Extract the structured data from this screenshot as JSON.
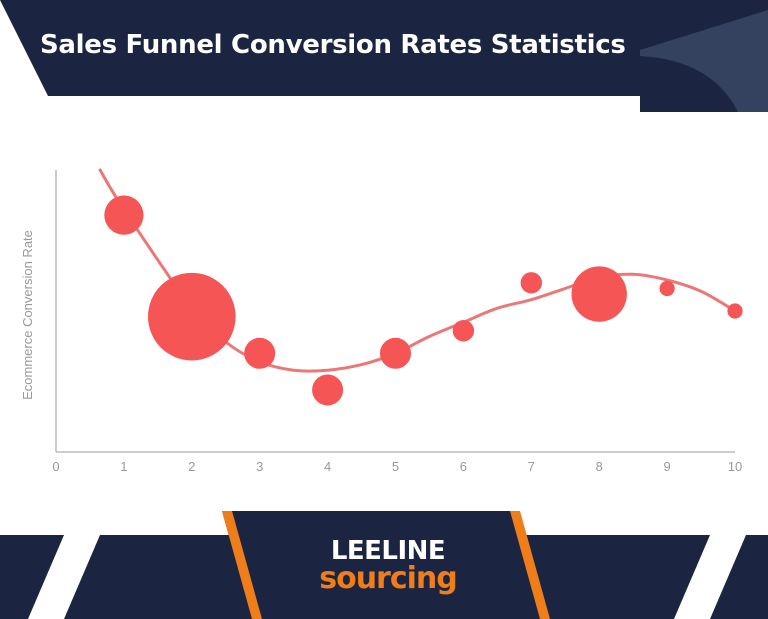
{
  "header": {
    "title": "Sales Funnel Conversion Rates Statistics"
  },
  "colors": {
    "navy": "#1b2541",
    "navy_light": "#34425f",
    "accent": "#f55555",
    "trendline": "#ec7777",
    "orange": "#ef7d1a",
    "axis": "#bbbbbb",
    "tick_text": "#999999"
  },
  "chart_data": {
    "type": "scatter",
    "title": "",
    "xlabel": "",
    "ylabel": "Ecommerce Conversion Rate",
    "xlim": [
      0,
      10
    ],
    "ylim": [
      0,
      10
    ],
    "x_ticks": [
      "0",
      "1",
      "2",
      "3",
      "4",
      "5",
      "6",
      "7",
      "8",
      "9",
      "10"
    ],
    "y_ticks_visible": false,
    "grid": false,
    "legend": "none",
    "series": [
      {
        "points": [
          {
            "x": 1,
            "y": 8.4,
            "size": 4
          },
          {
            "x": 2,
            "y": 4.8,
            "size": 20
          },
          {
            "x": 3,
            "y": 3.5,
            "size": 2.5
          },
          {
            "x": 4,
            "y": 2.2,
            "size": 2.5
          },
          {
            "x": 5,
            "y": 3.5,
            "size": 2.5
          },
          {
            "x": 6,
            "y": 4.3,
            "size": 1.2
          },
          {
            "x": 7,
            "y": 6.0,
            "size": 1.2
          },
          {
            "x": 8,
            "y": 5.6,
            "size": 8
          },
          {
            "x": 9,
            "y": 5.8,
            "size": 0.6
          },
          {
            "x": 10,
            "y": 5.0,
            "size": 0.6
          }
        ]
      }
    ],
    "trendline": {
      "type": "polynomial",
      "points": [
        {
          "x": 0.65,
          "y": 10.0
        },
        {
          "x": 1.0,
          "y": 8.6
        },
        {
          "x": 2.0,
          "y": 5.1
        },
        {
          "x": 2.5,
          "y": 3.9
        },
        {
          "x": 3.0,
          "y": 3.2
        },
        {
          "x": 3.5,
          "y": 2.9
        },
        {
          "x": 4.0,
          "y": 2.9
        },
        {
          "x": 4.5,
          "y": 3.1
        },
        {
          "x": 5.0,
          "y": 3.5
        },
        {
          "x": 5.5,
          "y": 4.1
        },
        {
          "x": 6.0,
          "y": 4.6
        },
        {
          "x": 6.5,
          "y": 5.1
        },
        {
          "x": 7.0,
          "y": 5.4
        },
        {
          "x": 7.5,
          "y": 5.8
        },
        {
          "x": 8.0,
          "y": 6.2
        },
        {
          "x": 8.5,
          "y": 6.3
        },
        {
          "x": 9.0,
          "y": 6.1
        },
        {
          "x": 9.5,
          "y": 5.7
        },
        {
          "x": 10.0,
          "y": 5.0
        }
      ]
    }
  },
  "brand": {
    "line1": "LEELINE",
    "line2": "sourcing"
  }
}
